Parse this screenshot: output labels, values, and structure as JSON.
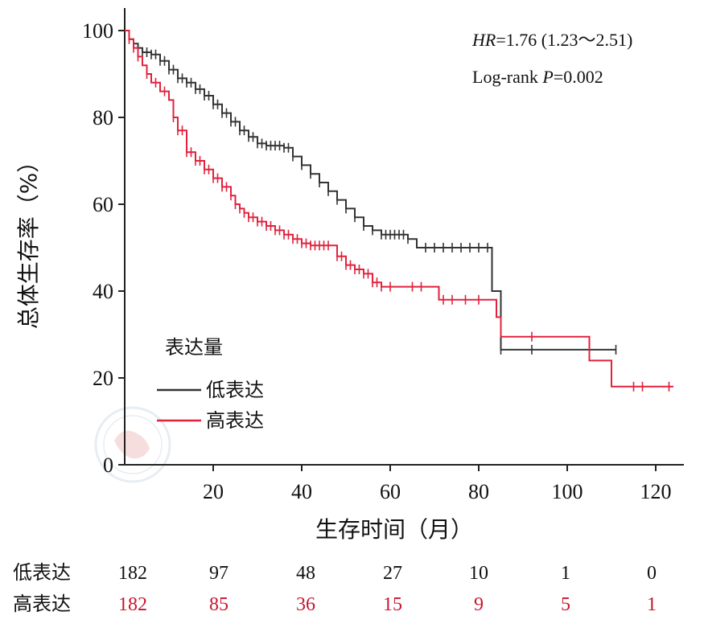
{
  "chart_data": {
    "type": "line",
    "subtype": "kaplan-meier",
    "xlabel": "生存时间（月）",
    "ylabel": "总体生存率（%）",
    "xlim": [
      0,
      127
    ],
    "ylim": [
      0,
      103
    ],
    "x_ticks": [
      "20",
      "40",
      "60",
      "80",
      "100",
      "120"
    ],
    "y_ticks": [
      "0",
      "20",
      "40",
      "60",
      "80",
      "100"
    ],
    "annotations": {
      "hr_label": "HR",
      "hr_value": "=1.76 (1.23～2.51)",
      "logrank_label": "Log-rank ",
      "p_label": "P",
      "p_value": "=0.002"
    },
    "legend": {
      "title": "表达量",
      "items": [
        "低表达",
        "高表达"
      ]
    },
    "colors": {
      "low": "#333333",
      "high": "#e0223c",
      "axis": "#222222"
    },
    "series": [
      {
        "name": "低表达",
        "points": [
          [
            0,
            100
          ],
          [
            1,
            98
          ],
          [
            2,
            97
          ],
          [
            3,
            96
          ],
          [
            4,
            95
          ],
          [
            6,
            94.5
          ],
          [
            8,
            93
          ],
          [
            10,
            91
          ],
          [
            12,
            89
          ],
          [
            14,
            88
          ],
          [
            16,
            86.5
          ],
          [
            18,
            85
          ],
          [
            20,
            83
          ],
          [
            22,
            81
          ],
          [
            24,
            79
          ],
          [
            26,
            77
          ],
          [
            28,
            75.5
          ],
          [
            30,
            74
          ],
          [
            32,
            73.5
          ],
          [
            34,
            73.5
          ],
          [
            36,
            73
          ],
          [
            38,
            71
          ],
          [
            40,
            69
          ],
          [
            42,
            67
          ],
          [
            44,
            65
          ],
          [
            46,
            63
          ],
          [
            48,
            61
          ],
          [
            50,
            59
          ],
          [
            52,
            57
          ],
          [
            54,
            55
          ],
          [
            56,
            54
          ],
          [
            58,
            53
          ],
          [
            60,
            53
          ],
          [
            62,
            53
          ],
          [
            64,
            52
          ],
          [
            66,
            50
          ],
          [
            68,
            50
          ],
          [
            70,
            50
          ],
          [
            72,
            50
          ],
          [
            74,
            50
          ],
          [
            76,
            50
          ],
          [
            78,
            50
          ],
          [
            80,
            50
          ],
          [
            82,
            50
          ],
          [
            83,
            40
          ],
          [
            84,
            40
          ],
          [
            85,
            26.5
          ],
          [
            90,
            26.5
          ],
          [
            95,
            26.5
          ],
          [
            100,
            26.5
          ],
          [
            105,
            26.5
          ],
          [
            111,
            26.5
          ]
        ],
        "censors": [
          2,
          3,
          4,
          5,
          6,
          7,
          8,
          9,
          10,
          11,
          12,
          13,
          14,
          15,
          16,
          17,
          18,
          19,
          20,
          21,
          22,
          23,
          24,
          25,
          26,
          27,
          28,
          29,
          30,
          31,
          32,
          33,
          34,
          35,
          36,
          37,
          38,
          40,
          42,
          44,
          46,
          48,
          50,
          52,
          54,
          56,
          58,
          59,
          60,
          61,
          62,
          63,
          64,
          68,
          70,
          72,
          74,
          76,
          78,
          80,
          82,
          85,
          92,
          111
        ]
      },
      {
        "name": "高表达",
        "points": [
          [
            0,
            100
          ],
          [
            1,
            98
          ],
          [
            2,
            96
          ],
          [
            3,
            94
          ],
          [
            4,
            92
          ],
          [
            5,
            90
          ],
          [
            6,
            88
          ],
          [
            8,
            86
          ],
          [
            10,
            84
          ],
          [
            11,
            80
          ],
          [
            12,
            77
          ],
          [
            14,
            72
          ],
          [
            16,
            70
          ],
          [
            18,
            68
          ],
          [
            20,
            66
          ],
          [
            22,
            64
          ],
          [
            24,
            62
          ],
          [
            25,
            60
          ],
          [
            26,
            59
          ],
          [
            27,
            58
          ],
          [
            28,
            57
          ],
          [
            30,
            56
          ],
          [
            32,
            55
          ],
          [
            34,
            54
          ],
          [
            36,
            53
          ],
          [
            38,
            52
          ],
          [
            40,
            51
          ],
          [
            42,
            50.5
          ],
          [
            44,
            50.5
          ],
          [
            46,
            50.5
          ],
          [
            48,
            48
          ],
          [
            50,
            46
          ],
          [
            52,
            45
          ],
          [
            54,
            44
          ],
          [
            56,
            42
          ],
          [
            58,
            41
          ],
          [
            60,
            41
          ],
          [
            62,
            41
          ],
          [
            64,
            41
          ],
          [
            66,
            41
          ],
          [
            70,
            41
          ],
          [
            71,
            38
          ],
          [
            75,
            38
          ],
          [
            80,
            38
          ],
          [
            84,
            34
          ],
          [
            85,
            29.5
          ],
          [
            90,
            29.5
          ],
          [
            95,
            29.5
          ],
          [
            100,
            29.5
          ],
          [
            104,
            29.5
          ],
          [
            105,
            24
          ],
          [
            108,
            24
          ],
          [
            110,
            18
          ],
          [
            114,
            18
          ],
          [
            118,
            18
          ],
          [
            124,
            18
          ]
        ],
        "censors": [
          1,
          2,
          3,
          5,
          7,
          9,
          11,
          12,
          13,
          14,
          15,
          16,
          17,
          18,
          19,
          20,
          21,
          22,
          23,
          24,
          25,
          26,
          27,
          28,
          29,
          30,
          31,
          32,
          33,
          34,
          35,
          36,
          37,
          38,
          39,
          40,
          41,
          42,
          43,
          44,
          45,
          46,
          48,
          49,
          50,
          51,
          52,
          53,
          54,
          55,
          56,
          57,
          58,
          60,
          65,
          67,
          72,
          74,
          77,
          80,
          92,
          115,
          117,
          123
        ]
      }
    ],
    "risk_table": {
      "times": [
        0,
        20,
        40,
        60,
        80,
        100,
        120
      ],
      "rows": [
        {
          "label": "低表达",
          "values": [
            "182",
            "97",
            "48",
            "27",
            "10",
            "1",
            "0"
          ]
        },
        {
          "label": "高表达",
          "values": [
            "182",
            "85",
            "36",
            "15",
            "9",
            "5",
            "1"
          ]
        }
      ]
    }
  }
}
